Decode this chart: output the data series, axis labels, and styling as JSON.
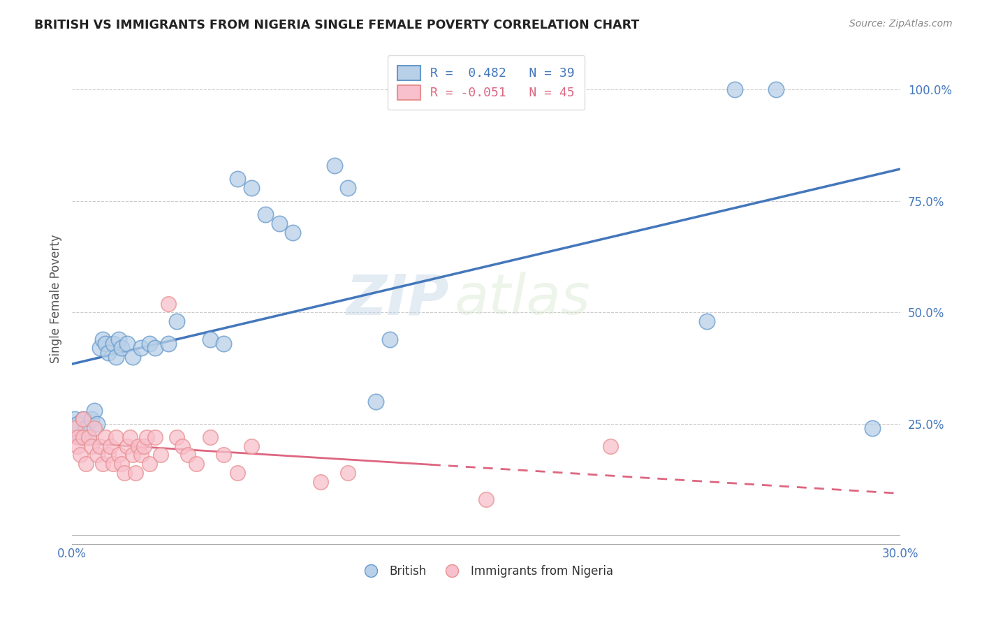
{
  "title": "BRITISH VS IMMIGRANTS FROM NIGERIA SINGLE FEMALE POVERTY CORRELATION CHART",
  "source": "Source: ZipAtlas.com",
  "ylabel": "Single Female Poverty",
  "xlim": [
    0.0,
    0.3
  ],
  "ylim": [
    -0.02,
    1.08
  ],
  "xticks": [
    0.0,
    0.05,
    0.1,
    0.15,
    0.2,
    0.25,
    0.3
  ],
  "yticks": [
    0.25,
    0.5,
    0.75,
    1.0
  ],
  "ytick_labels": [
    "25.0%",
    "50.0%",
    "75.0%",
    "100.0%"
  ],
  "xtick_labels": [
    "0.0%",
    "",
    "",
    "",
    "",
    "",
    "30.0%"
  ],
  "british_R": 0.482,
  "british_N": 39,
  "nigeria_R": -0.051,
  "nigeria_N": 45,
  "british_color": "#b8d0e8",
  "british_edge_color": "#6699cc",
  "british_line_color": "#4477bb",
  "nigeria_color": "#f8c0cc",
  "nigeria_edge_color": "#e89090",
  "nigeria_line_color": "#dd6680",
  "watermark_zip": "ZIP",
  "watermark_atlas": "atlas",
  "british_points": [
    [
      0.001,
      0.26
    ],
    [
      0.002,
      0.25
    ],
    [
      0.003,
      0.22
    ],
    [
      0.004,
      0.26
    ],
    [
      0.005,
      0.24
    ],
    [
      0.006,
      0.22
    ],
    [
      0.007,
      0.26
    ],
    [
      0.008,
      0.28
    ],
    [
      0.009,
      0.25
    ],
    [
      0.01,
      0.42
    ],
    [
      0.011,
      0.44
    ],
    [
      0.012,
      0.43
    ],
    [
      0.013,
      0.41
    ],
    [
      0.015,
      0.43
    ],
    [
      0.016,
      0.4
    ],
    [
      0.017,
      0.44
    ],
    [
      0.018,
      0.42
    ],
    [
      0.02,
      0.43
    ],
    [
      0.022,
      0.4
    ],
    [
      0.025,
      0.42
    ],
    [
      0.028,
      0.43
    ],
    [
      0.03,
      0.42
    ],
    [
      0.035,
      0.43
    ],
    [
      0.038,
      0.48
    ],
    [
      0.05,
      0.44
    ],
    [
      0.055,
      0.43
    ],
    [
      0.06,
      0.8
    ],
    [
      0.065,
      0.78
    ],
    [
      0.07,
      0.72
    ],
    [
      0.075,
      0.7
    ],
    [
      0.08,
      0.68
    ],
    [
      0.095,
      0.83
    ],
    [
      0.1,
      0.78
    ],
    [
      0.11,
      0.3
    ],
    [
      0.115,
      0.44
    ],
    [
      0.23,
      0.48
    ],
    [
      0.24,
      1.0
    ],
    [
      0.255,
      1.0
    ],
    [
      0.29,
      0.24
    ]
  ],
  "nigeria_points": [
    [
      0.001,
      0.24
    ],
    [
      0.002,
      0.22
    ],
    [
      0.002,
      0.2
    ],
    [
      0.003,
      0.18
    ],
    [
      0.004,
      0.22
    ],
    [
      0.004,
      0.26
    ],
    [
      0.005,
      0.16
    ],
    [
      0.006,
      0.22
    ],
    [
      0.007,
      0.2
    ],
    [
      0.008,
      0.24
    ],
    [
      0.009,
      0.18
    ],
    [
      0.01,
      0.2
    ],
    [
      0.011,
      0.16
    ],
    [
      0.012,
      0.22
    ],
    [
      0.013,
      0.18
    ],
    [
      0.014,
      0.2
    ],
    [
      0.015,
      0.16
    ],
    [
      0.016,
      0.22
    ],
    [
      0.017,
      0.18
    ],
    [
      0.018,
      0.16
    ],
    [
      0.019,
      0.14
    ],
    [
      0.02,
      0.2
    ],
    [
      0.021,
      0.22
    ],
    [
      0.022,
      0.18
    ],
    [
      0.023,
      0.14
    ],
    [
      0.024,
      0.2
    ],
    [
      0.025,
      0.18
    ],
    [
      0.026,
      0.2
    ],
    [
      0.027,
      0.22
    ],
    [
      0.028,
      0.16
    ],
    [
      0.03,
      0.22
    ],
    [
      0.032,
      0.18
    ],
    [
      0.035,
      0.52
    ],
    [
      0.038,
      0.22
    ],
    [
      0.04,
      0.2
    ],
    [
      0.042,
      0.18
    ],
    [
      0.045,
      0.16
    ],
    [
      0.05,
      0.22
    ],
    [
      0.055,
      0.18
    ],
    [
      0.06,
      0.14
    ],
    [
      0.065,
      0.2
    ],
    [
      0.09,
      0.12
    ],
    [
      0.1,
      0.14
    ],
    [
      0.15,
      0.08
    ],
    [
      0.195,
      0.2
    ]
  ]
}
